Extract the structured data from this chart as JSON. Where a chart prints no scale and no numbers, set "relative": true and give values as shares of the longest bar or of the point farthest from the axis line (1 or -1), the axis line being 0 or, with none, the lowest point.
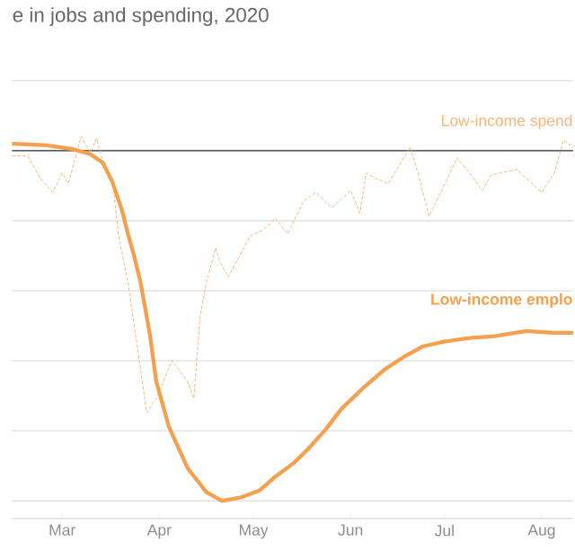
{
  "chart_data": {
    "type": "line",
    "title": "e in jobs and spending, 2020",
    "relative": true,
    "grid": "y",
    "xlim": [
      "2020-02-14",
      "2020-08-11"
    ],
    "xticks": [
      {
        "value": "2020-03-01",
        "label": "Mar"
      },
      {
        "value": "2020-04-01",
        "label": "Apr"
      },
      {
        "value": "2020-05-01",
        "label": "May"
      },
      {
        "value": "2020-06-01",
        "label": "Jun"
      },
      {
        "value": "2020-07-01",
        "label": "Jul"
      },
      {
        "value": "2020-08-01",
        "label": "Aug"
      }
    ],
    "ref_lines": [
      {
        "axis": "y",
        "value": 0,
        "color": "#333333"
      }
    ],
    "series": [
      {
        "name": "Low-income spend",
        "color": "#f8b57a",
        "line_style": "dashed",
        "x": [
          "2020-02-14",
          "2020-02-19",
          "2020-02-23",
          "2020-02-27",
          "2020-03-01",
          "2020-03-03",
          "2020-03-07",
          "2020-03-10",
          "2020-03-12",
          "2020-03-14",
          "2020-03-17",
          "2020-03-19",
          "2020-03-22",
          "2020-03-28",
          "2020-03-31",
          "2020-04-05",
          "2020-04-10",
          "2020-04-12",
          "2020-04-14",
          "2020-04-16",
          "2020-04-19",
          "2020-04-20",
          "2020-04-23",
          "2020-04-25",
          "2020-04-30",
          "2020-05-04",
          "2020-05-08",
          "2020-05-12",
          "2020-05-17",
          "2020-05-21",
          "2020-05-26",
          "2020-06-01",
          "2020-06-04",
          "2020-06-06",
          "2020-06-09",
          "2020-06-13",
          "2020-06-20",
          "2020-06-23",
          "2020-06-26",
          "2020-07-02",
          "2020-07-05",
          "2020-07-09",
          "2020-07-13",
          "2020-07-16",
          "2020-07-24",
          "2020-08-01",
          "2020-08-05",
          "2020-08-08",
          "2020-08-11"
        ],
        "values": [
          -0.015,
          -0.015,
          -0.079,
          -0.119,
          -0.064,
          -0.094,
          0.04,
          -0.005,
          0.035,
          -0.03,
          -0.079,
          -0.243,
          -0.376,
          -0.748,
          -0.708,
          -0.599,
          -0.658,
          -0.708,
          -0.475,
          -0.376,
          -0.277,
          -0.312,
          -0.361,
          -0.327,
          -0.243,
          -0.228,
          -0.193,
          -0.238,
          -0.144,
          -0.119,
          -0.163,
          -0.114,
          -0.178,
          -0.064,
          -0.079,
          -0.094,
          0.01,
          -0.079,
          -0.188,
          -0.079,
          -0.02,
          -0.064,
          -0.114,
          -0.069,
          -0.054,
          -0.119,
          -0.064,
          0.03,
          0.01
        ]
      },
      {
        "name": "Low-income emplo",
        "color": "#f5a04f",
        "line_style": "solid",
        "x": [
          "2020-02-14",
          "2020-02-25",
          "2020-03-04",
          "2020-03-10",
          "2020-03-14",
          "2020-03-17",
          "2020-03-20",
          "2020-03-22",
          "2020-03-24",
          "2020-03-26",
          "2020-03-29",
          "2020-03-31",
          "2020-04-04",
          "2020-04-10",
          "2020-04-16",
          "2020-04-21",
          "2020-04-27",
          "2020-05-03",
          "2020-05-08",
          "2020-05-14",
          "2020-05-18",
          "2020-05-24",
          "2020-05-29",
          "2020-06-05",
          "2020-06-12",
          "2020-06-18",
          "2020-06-24",
          "2020-07-01",
          "2020-07-09",
          "2020-07-17",
          "2020-07-27",
          "2020-08-05",
          "2020-08-11"
        ],
        "values": [
          0.02,
          0.015,
          0.005,
          -0.01,
          -0.035,
          -0.089,
          -0.168,
          -0.238,
          -0.302,
          -0.376,
          -0.525,
          -0.658,
          -0.787,
          -0.906,
          -0.975,
          -1,
          -0.99,
          -0.97,
          -0.931,
          -0.891,
          -0.856,
          -0.797,
          -0.738,
          -0.678,
          -0.624,
          -0.589,
          -0.559,
          -0.545,
          -0.535,
          -0.53,
          -0.515,
          -0.52,
          -0.52
        ]
      }
    ]
  }
}
